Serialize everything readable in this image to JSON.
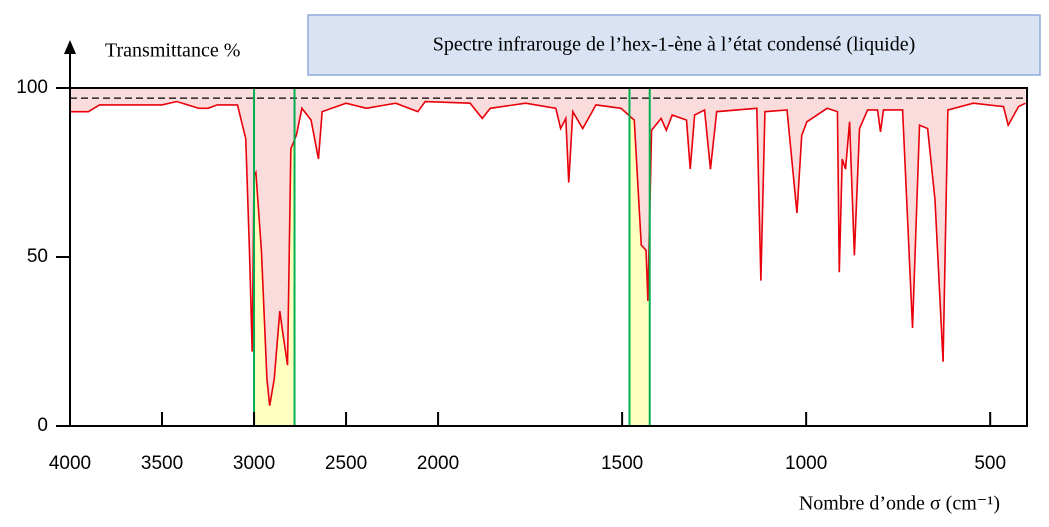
{
  "chart_data": {
    "type": "line",
    "title": "Spectre infrarouge de l’hex-1-ène à l’état condensé (liquide)",
    "y_label": "Transmittance %",
    "x_label": "Nombre d’onde σ (cm⁻¹)",
    "color": "#e8000b",
    "fill_color": "#fbdcdc",
    "x": [
      4000,
      3900,
      3840,
      3500,
      3420,
      3300,
      3250,
      3200,
      3090,
      3045,
      3025,
      3010,
      3000,
      2990,
      2960,
      2930,
      2915,
      2890,
      2860,
      2845,
      2818,
      2800,
      2770,
      2740,
      2690,
      2650,
      2630,
      2500,
      2390,
      2230,
      2110,
      2070,
      1913,
      1880,
      1858,
      1762,
      1680,
      1667,
      1653,
      1645,
      1634,
      1607,
      1571,
      1503,
      1467,
      1448,
      1435,
      1430,
      1420,
      1394,
      1380,
      1364,
      1325,
      1315,
      1303,
      1276,
      1260,
      1243,
      1134,
      1123,
      1112,
      1052,
      1025,
      1012,
      998,
      943,
      915,
      910,
      902,
      893,
      882,
      869,
      855,
      833,
      806,
      798,
      790,
      738,
      711,
      692,
      670,
      650,
      628,
      615,
      546,
      464,
      451,
      423,
      404
    ],
    "y": [
      93,
      93,
      95,
      95,
      96,
      94,
      94,
      95,
      95,
      85,
      52,
      22,
      74,
      75,
      52,
      14,
      6,
      14,
      34,
      28,
      18,
      82,
      86,
      94,
      90.5,
      79,
      93,
      95.5,
      94,
      95.5,
      93,
      96,
      95.5,
      91,
      94,
      95.5,
      94,
      88,
      91,
      72,
      93,
      88,
      95,
      94,
      90.5,
      53.5,
      52,
      37,
      87.5,
      91,
      87.5,
      92,
      90.5,
      76,
      92,
      93.5,
      76,
      93,
      94,
      43,
      93,
      93.5,
      63,
      86,
      90,
      94,
      93,
      45.5,
      79,
      76,
      90,
      50.5,
      88,
      93.5,
      93.5,
      87,
      93.5,
      93.5,
      29,
      89,
      88,
      67,
      19,
      93.5,
      95.5,
      94.5,
      89,
      94.5,
      95.5
    ],
    "xlim": [
      4000,
      400
    ],
    "xticks": [
      4000,
      3500,
      3000,
      2500,
      2000,
      1500,
      1000,
      500
    ],
    "x_scale": {
      "break": 2000,
      "compression": 2
    },
    "ylim": [
      0,
      100
    ],
    "yticks": [
      0,
      50,
      100
    ],
    "reference_line": 97,
    "highlight_bands": [
      [
        3000,
        2780
      ],
      [
        1480,
        1425
      ]
    ],
    "highlight_color": "#ffffc0",
    "band_line_color": "#00b050"
  }
}
